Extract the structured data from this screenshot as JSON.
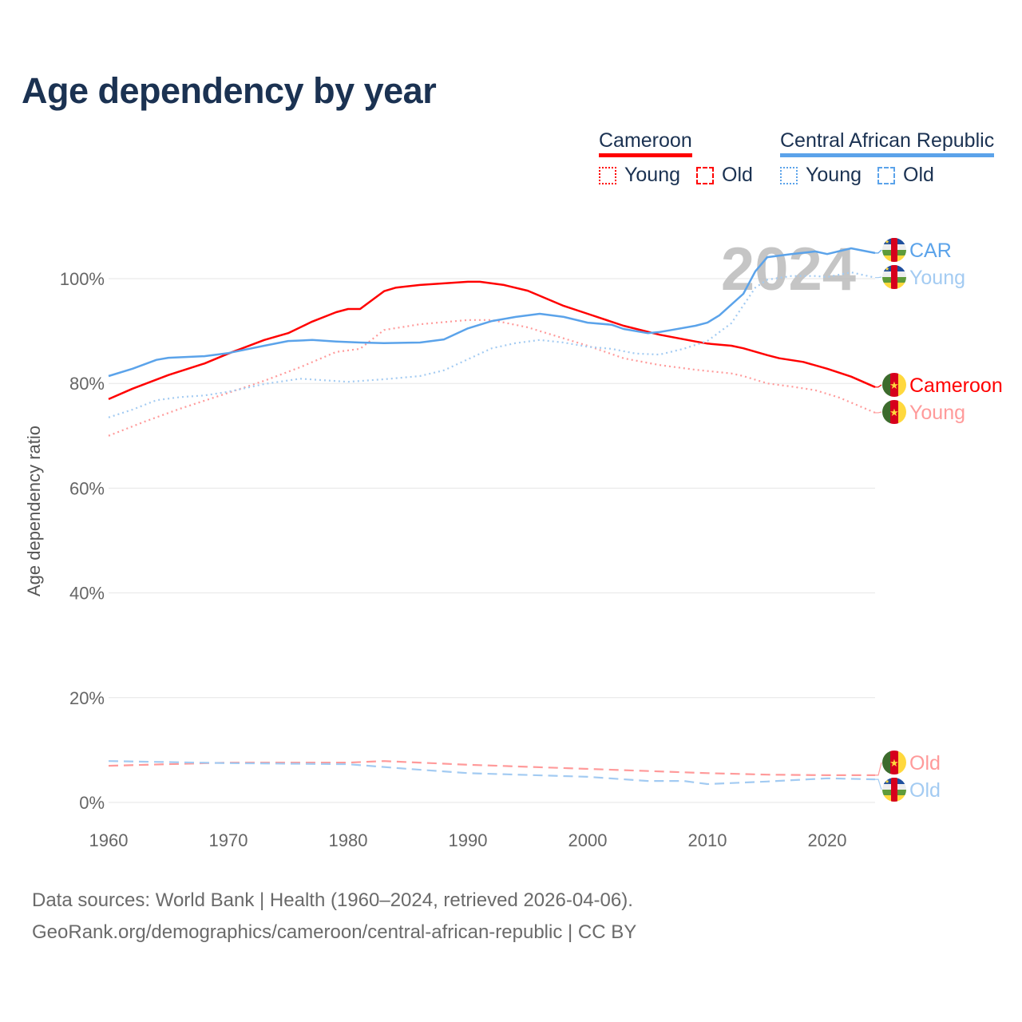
{
  "title": "Age dependency by year",
  "legend": {
    "groups": [
      {
        "name": "Cameroon",
        "color": "#ff0000",
        "young": "Young",
        "old": "Old"
      },
      {
        "name": "Central African Republic",
        "color": "#5ba3ea",
        "young": "Young",
        "old": "Old"
      }
    ]
  },
  "footer": {
    "line1": "Data sources: World Bank | Health (1960–2024, retrieved 2026-04-06).",
    "line2": "GeoRank.org/demographics/cameroon/central-african-republic | CC BY"
  },
  "chart_data": {
    "type": "line",
    "title": "Age dependency by year",
    "xlabel": "",
    "ylabel": "Age dependency ratio",
    "xlim": [
      1960,
      2024
    ],
    "ylim": [
      0,
      110
    ],
    "x_ticks": [
      "1960",
      "1970",
      "1980",
      "1990",
      "2000",
      "2010",
      "2020"
    ],
    "y_ticks": [
      "0%",
      "20%",
      "40%",
      "60%",
      "80%",
      "100%"
    ],
    "grid": true,
    "year_watermark": "2024",
    "series": [
      {
        "name": "Cameroon",
        "end_label": "Cameroon",
        "flag": "cameroon",
        "color": "#ff0000",
        "style": "solid",
        "x": [
          1960,
          1962,
          1965,
          1968,
          1970,
          1973,
          1975,
          1977,
          1979,
          1980,
          1981,
          1983,
          1984,
          1986,
          1988,
          1990,
          1991,
          1993,
          1995,
          1998,
          2000,
          2003,
          2006,
          2009,
          2010,
          2012,
          2013,
          2015,
          2016,
          2018,
          2020,
          2022,
          2024
        ],
        "y": [
          77.0,
          79.0,
          81.6,
          83.8,
          85.7,
          88.3,
          89.6,
          91.8,
          93.6,
          94.2,
          94.2,
          97.6,
          98.3,
          98.8,
          99.1,
          99.4,
          99.4,
          98.8,
          97.7,
          94.8,
          93.3,
          91.0,
          89.3,
          88.0,
          87.6,
          87.2,
          86.7,
          85.4,
          84.8,
          84.1,
          82.8,
          81.3,
          79.3
        ]
      },
      {
        "name": "Cameroon Young",
        "end_label": "Young",
        "flag": "cameroon",
        "color": "#ff9a9a",
        "style": "dotted",
        "x": [
          1960,
          1963,
          1966,
          1970,
          1973,
          1976,
          1979,
          1981,
          1983,
          1986,
          1990,
          1992,
          1995,
          1998,
          2000,
          2003,
          2006,
          2009,
          2012,
          2013,
          2015,
          2017,
          2019,
          2021,
          2024
        ],
        "y": [
          70.0,
          72.7,
          75.2,
          78.2,
          80.5,
          83.1,
          86.0,
          86.6,
          90.2,
          91.3,
          92.1,
          92.1,
          90.7,
          88.6,
          87.2,
          84.8,
          83.5,
          82.6,
          81.9,
          81.4,
          80.0,
          79.4,
          78.7,
          77.3,
          74.4
        ]
      },
      {
        "name": "Cameroon Old",
        "end_label": "Old",
        "flag": "cameroon",
        "color": "#ff9a9a",
        "style": "dashed",
        "x": [
          1960,
          1970,
          1980,
          1983,
          1990,
          2000,
          2010,
          2015,
          2020,
          2024
        ],
        "y": [
          7.0,
          7.6,
          7.6,
          7.9,
          7.2,
          6.4,
          5.6,
          5.3,
          5.2,
          5.2
        ]
      },
      {
        "name": "Central African Republic",
        "end_label": "CAR",
        "flag": "car",
        "color": "#5ba3ea",
        "style": "solid",
        "x": [
          1960,
          1962,
          1964,
          1965,
          1968,
          1970,
          1973,
          1975,
          1977,
          1979,
          1981,
          1983,
          1986,
          1988,
          1990,
          1992,
          1994,
          1996,
          1998,
          2000,
          2002,
          2003,
          2005,
          2006,
          2007,
          2009,
          2010,
          2011,
          2013,
          2014,
          2015,
          2017,
          2019,
          2020,
          2022,
          2024
        ],
        "y": [
          81.4,
          82.8,
          84.5,
          84.9,
          85.2,
          85.8,
          87.2,
          88.1,
          88.3,
          88.0,
          87.8,
          87.7,
          87.8,
          88.4,
          90.5,
          91.9,
          92.7,
          93.3,
          92.7,
          91.6,
          91.2,
          90.4,
          89.6,
          89.8,
          90.2,
          91.0,
          91.6,
          93.0,
          97.1,
          101.4,
          104.1,
          104.7,
          105.2,
          104.7,
          105.8,
          104.9
        ]
      },
      {
        "name": "Central African Republic Young",
        "end_label": "Young",
        "flag": "car",
        "color": "#a3cbf2",
        "style": "dotted",
        "x": [
          1960,
          1962,
          1964,
          1966,
          1968,
          1970,
          1973,
          1976,
          1980,
          1983,
          1986,
          1988,
          1990,
          1992,
          1994,
          1996,
          1998,
          2000,
          2002,
          2004,
          2006,
          2008,
          2010,
          2012,
          2014,
          2015,
          2017,
          2019,
          2020,
          2022,
          2024
        ],
        "y": [
          73.5,
          75.0,
          76.8,
          77.4,
          77.7,
          78.4,
          79.9,
          80.9,
          80.3,
          80.8,
          81.4,
          82.5,
          84.6,
          86.7,
          87.7,
          88.3,
          87.8,
          87.0,
          86.6,
          85.7,
          85.5,
          86.6,
          88.1,
          91.5,
          98.3,
          99.8,
          100.5,
          100.5,
          100.3,
          101.2,
          100.2
        ]
      },
      {
        "name": "Central African Republic Old",
        "end_label": "Old",
        "flag": "car",
        "color": "#a3cbf2",
        "style": "dashed",
        "x": [
          1960,
          1970,
          1980,
          1985,
          1990,
          2000,
          2005,
          2008,
          2010,
          2015,
          2020,
          2024
        ],
        "y": [
          7.9,
          7.5,
          7.3,
          6.4,
          5.6,
          4.9,
          4.1,
          4.1,
          3.5,
          4.0,
          4.6,
          4.4
        ]
      }
    ]
  }
}
